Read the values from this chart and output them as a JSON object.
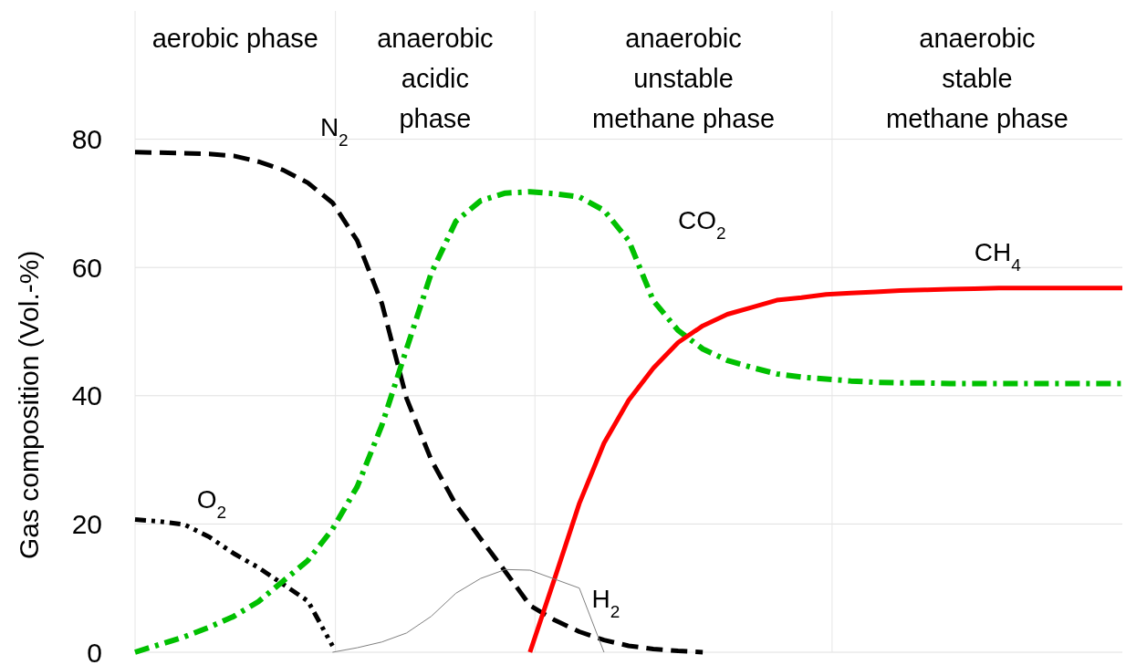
{
  "chart_data": {
    "type": "line",
    "ylabel": "Gas composition (Vol.-%)",
    "ylim": [
      0,
      100
    ],
    "yticks": [
      0,
      20,
      40,
      60,
      80
    ],
    "grid": "y",
    "categories": [
      null,
      null,
      null,
      null,
      null,
      null,
      null,
      null,
      null,
      null,
      null,
      null,
      null,
      null,
      null,
      null,
      null,
      null,
      null,
      null,
      null,
      null,
      null,
      null,
      null,
      null,
      null,
      null,
      null,
      null,
      null,
      null,
      null,
      null,
      null,
      null,
      null,
      null,
      null,
      null,
      null
    ],
    "annotations": [
      "aerobic phase",
      "anaerobic\nacidic\nphase",
      "anaerobic\nunstable\nmethane phase",
      "anaerobic\nstable\nmethane phase"
    ],
    "series": [
      {
        "name": "N$_{2}$",
        "color": "#000000",
        "line_style": "dashed",
        "values": [
          78,
          77.9,
          77.8,
          77.7,
          77.4,
          76.5,
          75.2,
          73.2,
          70.1,
          64.2,
          54.4,
          39.6,
          30,
          23,
          17.7,
          12.6,
          7.3,
          5,
          3.2,
          1.9,
          1,
          0.5,
          0.2,
          0,
          null,
          null,
          null,
          null,
          null,
          null,
          null,
          null,
          null,
          null,
          null,
          null,
          null,
          null,
          null,
          null,
          null
        ]
      },
      {
        "name": "O$_{2}$",
        "color": "#000000",
        "line_style": "dashdotdot",
        "values": [
          20.7,
          20.4,
          19.9,
          18,
          15.4,
          13.2,
          10.6,
          8,
          1,
          null,
          null,
          null,
          null,
          null,
          null,
          null,
          null,
          null,
          null,
          null,
          null,
          null,
          null,
          null,
          null,
          null,
          null,
          null,
          null,
          null,
          null,
          null,
          null,
          null,
          null,
          null,
          null,
          null,
          null,
          null,
          null
        ]
      },
      {
        "name": "CO$_{2}$",
        "color": "#00c000",
        "line_style": "dashdot",
        "values": [
          0,
          1.2,
          2.4,
          3.9,
          5.6,
          7.9,
          11.1,
          14.3,
          19.2,
          25.8,
          35.4,
          47.3,
          59.1,
          67.2,
          70.4,
          71.6,
          71.8,
          71.5,
          71,
          68.9,
          64.2,
          54.8,
          50.2,
          47.3,
          45.5,
          44.4,
          43.4,
          42.9,
          42.6,
          42.3,
          42.1,
          42,
          42,
          41.9,
          41.9,
          41.9,
          41.9,
          41.9,
          41.9,
          41.9,
          41.9
        ]
      },
      {
        "name": "CH$_{4}$",
        "color": "#ff0000",
        "line_style": "solid",
        "values": [
          null,
          null,
          null,
          null,
          null,
          null,
          null,
          null,
          null,
          null,
          null,
          null,
          null,
          null,
          null,
          null,
          0,
          11.5,
          23.2,
          32.6,
          39.3,
          44.3,
          48.3,
          50.9,
          52.7,
          53.8,
          54.9,
          55.3,
          55.8,
          56,
          56.2,
          56.4,
          56.5,
          56.6,
          56.7,
          56.8,
          56.8,
          56.8,
          56.8,
          56.8,
          56.8
        ]
      },
      {
        "name": "H$_{2}$",
        "color": "#808080",
        "line_style": "solid",
        "values": [
          null,
          null,
          null,
          null,
          null,
          null,
          null,
          null,
          0,
          0.7,
          1.6,
          3,
          5.6,
          9.2,
          11.5,
          12.9,
          12.8,
          11.4,
          10,
          0,
          null,
          null,
          null,
          null,
          null,
          null,
          null,
          null,
          null,
          null,
          null,
          null,
          null,
          null,
          null,
          null,
          null,
          null,
          null,
          null,
          null
        ]
      }
    ]
  }
}
